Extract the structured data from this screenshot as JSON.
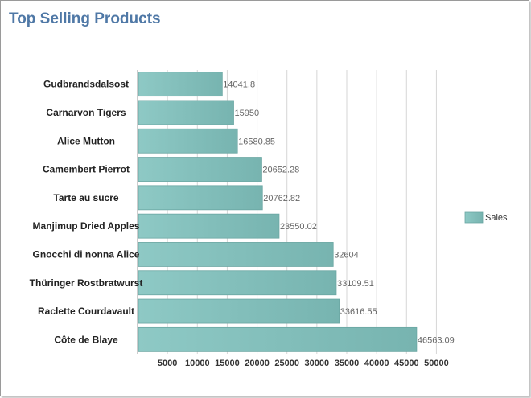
{
  "title": "Top Selling Products",
  "chart_data": {
    "type": "bar",
    "orientation": "horizontal",
    "title": "Top Selling Products",
    "categories": [
      "Gudbrandsdalsost",
      "Carnarvon Tigers",
      "Alice Mutton",
      "Camembert Pierrot",
      "Tarte au sucre",
      "Manjimup Dried Apples",
      "Gnocchi di nonna Alice",
      "Thüringer Rostbratwurst",
      "Raclette Courdavault",
      "Côte de Blaye"
    ],
    "series": [
      {
        "name": "Sales",
        "values": [
          14041.8,
          15950,
          16580.85,
          20652.28,
          20762.82,
          23550.02,
          32604,
          33109.51,
          33616.55,
          46563.09
        ]
      }
    ],
    "value_labels": [
      "14041.8",
      "15950",
      "16580.85",
      "20652.28",
      "20762.82",
      "23550.02",
      "32604",
      "33109.51",
      "33616.55",
      "46563.09"
    ],
    "xticks": [
      "5000",
      "10000",
      "15000",
      "20000",
      "25000",
      "30000",
      "35000",
      "40000",
      "45000",
      "50000"
    ],
    "xlim": [
      0,
      52500
    ],
    "grid": true,
    "legend_position": "right",
    "color": "#85c1bd"
  }
}
